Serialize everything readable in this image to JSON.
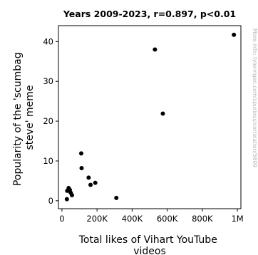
{
  "chart_data": {
    "type": "scatter",
    "title": "Years 2009-2023, r=0.897, p<0.01",
    "xlabel": "Total likes of Vihart YouTube videos",
    "ylabel": "Popularity of the 'scumbag steve' meme",
    "xlim": [
      -20000,
      1020000
    ],
    "ylim": [
      -2,
      44
    ],
    "xticks": [
      {
        "value": 0,
        "label": "0"
      },
      {
        "value": 200000,
        "label": "200K"
      },
      {
        "value": 400000,
        "label": "400K"
      },
      {
        "value": 600000,
        "label": "600K"
      },
      {
        "value": 800000,
        "label": "800K"
      },
      {
        "value": 1000000,
        "label": "1M"
      }
    ],
    "yticks": [
      {
        "value": 0,
        "label": "0"
      },
      {
        "value": 10,
        "label": "10"
      },
      {
        "value": 20,
        "label": "20"
      },
      {
        "value": 30,
        "label": "30"
      },
      {
        "value": 40,
        "label": "40"
      }
    ],
    "grid": false,
    "marker_color": "#000000",
    "points": [
      {
        "x": 28000,
        "y": 0.4
      },
      {
        "x": 30000,
        "y": 2.5
      },
      {
        "x": 38000,
        "y": 3.2
      },
      {
        "x": 45000,
        "y": 2.7
      },
      {
        "x": 50000,
        "y": 2.0
      },
      {
        "x": 57000,
        "y": 1.4
      },
      {
        "x": 110000,
        "y": 11.9
      },
      {
        "x": 112000,
        "y": 8.2
      },
      {
        "x": 152000,
        "y": 5.8
      },
      {
        "x": 163000,
        "y": 4.0
      },
      {
        "x": 190000,
        "y": 4.5
      },
      {
        "x": 310000,
        "y": 0.7
      },
      {
        "x": 530000,
        "y": 38.0
      },
      {
        "x": 575000,
        "y": 21.9
      },
      {
        "x": 980000,
        "y": 41.7
      }
    ]
  },
  "watermark": "More info: tylervigen.com/spurious/correlation/5809"
}
